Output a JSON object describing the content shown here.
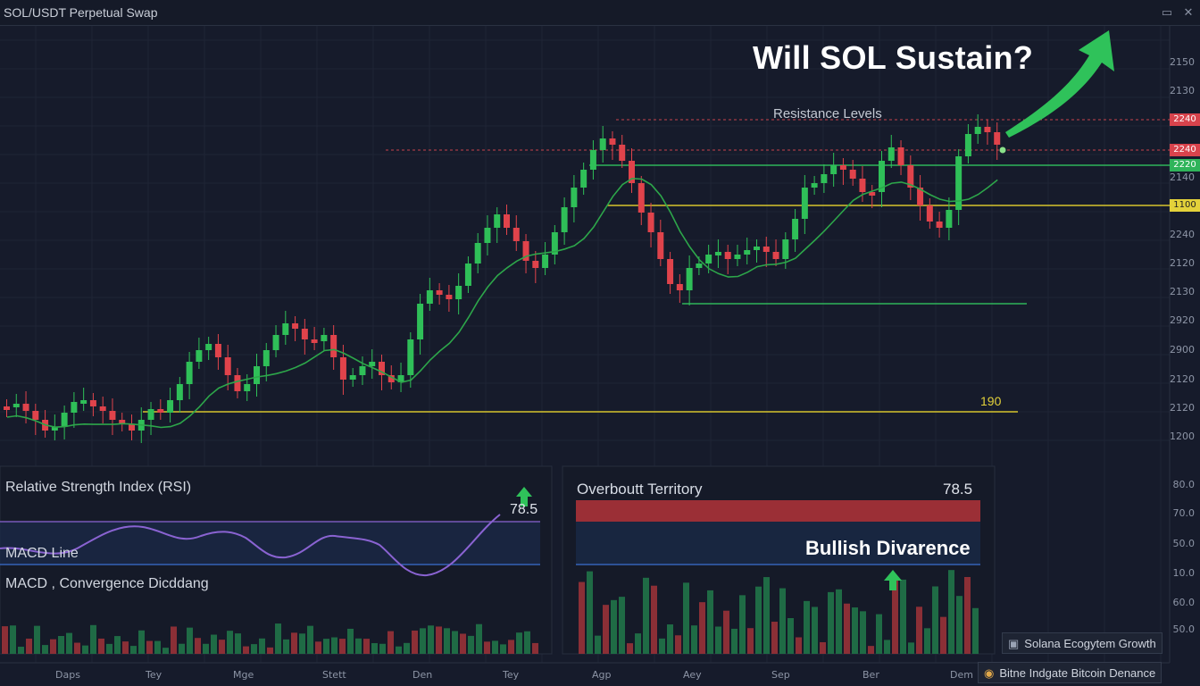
{
  "window": {
    "title": "SOL/USDT Perpetual Swap"
  },
  "headline": "Will SOL Sustain?",
  "annotations": {
    "resistance": "Resistance Levels",
    "support_label": "190"
  },
  "price_axis": [
    "2150",
    "2130",
    "2240",
    "2240",
    "2220",
    "2140",
    "1100",
    "2240",
    "2120",
    "2130",
    "2920",
    "2900",
    "2120",
    "2120",
    "1200"
  ],
  "price_tags": [
    {
      "text": "2240",
      "color": "#d8434c"
    },
    {
      "text": "2240",
      "color": "#d8434c"
    },
    {
      "text": "2220",
      "color": "#2fb45a"
    },
    {
      "text": "1100",
      "color": "#e3d13a"
    }
  ],
  "indicator_axis": [
    "80.0",
    "70.0",
    "50.0",
    "10.0",
    "60.0",
    "50.0"
  ],
  "rsi_panel": {
    "title": "Relative Strength Index (RSI)",
    "macd_line": "MACD Line",
    "macd_conv": "MACD , Convergence Dicddang",
    "value": "78.5"
  },
  "overbought_panel": {
    "title": "Overboutt Territory",
    "value": "78.5",
    "signal": "Bullish Divarence"
  },
  "x_axis": [
    "Daps",
    "Tey",
    "Mge",
    "Stett",
    "Den",
    "Tey",
    "Agp",
    "Aey",
    "Sep",
    "Ber",
    "Dem"
  ],
  "badges": [
    "Solana Ecogytem Growth",
    "Bitne Indgate Bitcoin Denance"
  ],
  "colors": {
    "up": "#2fbf58",
    "down": "#e0434b",
    "ma": "#2da64a",
    "support": "#d6c42c",
    "rsi": "#8a63d2",
    "accent": "#2fc25a"
  }
}
